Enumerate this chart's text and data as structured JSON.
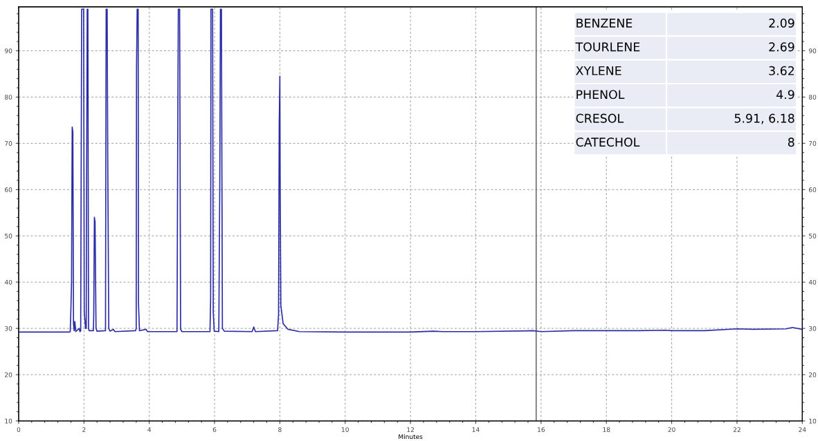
{
  "chart_data": {
    "type": "line",
    "xlabel": "Minutes",
    "x": [
      0,
      1.55,
      1.58,
      1.6,
      1.62,
      1.64,
      1.66,
      1.68,
      1.7,
      1.72,
      1.75,
      1.85,
      1.88,
      1.9,
      1.93,
      1.99,
      2.01,
      2.05,
      2.07,
      2.08,
      2.1,
      2.12,
      2.14,
      2.16,
      2.29,
      2.3,
      2.32,
      2.34,
      2.37,
      2.4,
      2.66,
      2.68,
      2.71,
      2.73,
      2.76,
      2.8,
      2.9,
      2.95,
      3.58,
      3.6,
      3.61,
      3.63,
      3.66,
      3.67,
      3.7,
      3.9,
      3.95,
      4.85,
      4.87,
      4.89,
      4.93,
      4.96,
      5.0,
      5.86,
      5.88,
      5.89,
      5.94,
      5.96,
      5.99,
      6.13,
      6.16,
      6.18,
      6.21,
      6.24,
      6.3,
      7.15,
      7.2,
      7.25,
      7.93,
      7.96,
      7.98,
      8.0,
      8.01,
      8.03,
      8.1,
      8.25,
      8.6,
      10,
      12,
      12.7,
      13,
      14,
      15.75,
      16,
      17,
      19,
      19.8,
      20,
      21,
      22,
      22.5,
      23.5,
      23.7,
      24
    ],
    "series": [
      {
        "color": "#2b2ba6",
        "values": [
          29.2,
          29.2,
          29.3,
          34,
          40,
          73.5,
          72.5,
          31,
          29.5,
          31.5,
          29.3,
          30,
          29.3,
          29.5,
          99,
          99,
          33.5,
          30,
          30,
          59,
          99,
          99,
          30,
          29.5,
          29.5,
          33,
          54,
          53,
          30,
          29.4,
          29.5,
          99,
          99,
          65,
          30,
          29.4,
          29.8,
          29.3,
          29.5,
          30,
          86,
          99,
          99,
          35.5,
          29.5,
          29.8,
          29.3,
          29.3,
          67,
          99,
          99,
          29.8,
          29.3,
          29.3,
          36.5,
          99,
          99,
          33.5,
          29.4,
          29.3,
          61,
          99,
          99,
          30,
          29.4,
          29.3,
          30.3,
          29.3,
          29.5,
          33,
          74,
          84.5,
          60,
          35,
          31,
          29.8,
          29.3,
          29.2,
          29.2,
          29.4,
          29.3,
          29.3,
          29.5,
          29.3,
          29.5,
          29.5,
          29.6,
          29.5,
          29.5,
          29.9,
          29.8,
          29.9,
          30.2,
          29.8
        ]
      }
    ],
    "xlim": [
      0,
      24
    ],
    "xticks": [
      0,
      2,
      4,
      6,
      8,
      10,
      12,
      14,
      16,
      18,
      20,
      22,
      24
    ],
    "ylim": [
      10,
      99.5
    ],
    "yticks": [
      10,
      20,
      30,
      40,
      50,
      60,
      70,
      80,
      90
    ],
    "y2lim": [
      10,
      99.5
    ],
    "y2ticks": [
      10,
      20,
      30,
      40,
      50,
      60,
      70,
      80,
      90
    ],
    "grid": true,
    "line_style": "solid",
    "marker": "none",
    "ref_lines": [
      {
        "axis": "x",
        "value": 15.85,
        "color": "#555555",
        "line_style": "solid"
      }
    ],
    "annotations": [
      "BENZENE",
      "2.09",
      "TOURLENE",
      "2.69",
      "XYLENE",
      "3.62",
      "PHENOL",
      "4.9",
      "CRESOL",
      "5.91, 6.18",
      "CATECHOL",
      "8"
    ]
  }
}
